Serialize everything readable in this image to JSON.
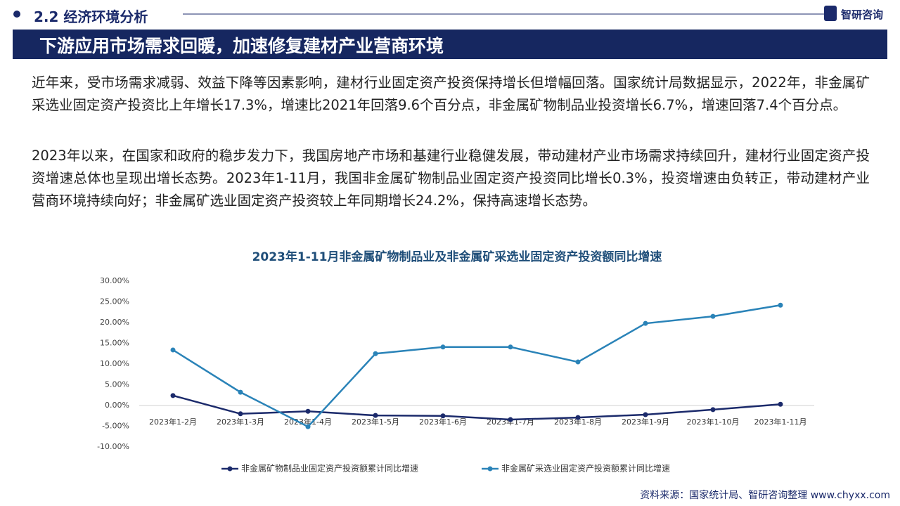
{
  "header": {
    "section": "2.2 经济环境分析",
    "brand": "智研咨询",
    "title": "下游应用市场需求回暖，加速修复建材产业营商环境"
  },
  "paragraphs": [
    "近年来，受市场需求减弱、效益下降等因素影响，建材行业固定资产投资保持增长但增幅回落。国家统计局数据显示，2022年，非金属矿采选业固定资产投资比上年增长17.3%，增速比2021年回落9.6个百分点，非金属矿物制品业投资增长6.7%，增速回落7.4个百分点。",
    "2023年以来，在国家和政府的稳步发力下，我国房地产市场和基建行业稳健发展，带动建材产业市场需求持续回升，建材行业固定资产投资增速总体也呈现出增长态势。2023年1-11月，我国非金属矿物制品业固定资产投资同比增长0.3%，投资增速由负转正，带动建材产业营商环境持续向好；非金属矿选业固定资产投资较上年同期增长24.2%，保持高速增长态势。"
  ],
  "source": "资料来源：国家统计局、智研咨询整理  www.chyxx.com",
  "chart_data": {
    "type": "line",
    "title": "2023年1-11月非金属矿物制品业及非金属矿采选业固定资产投资额同比增速",
    "categories": [
      "2023年1-2月",
      "2023年1-3月",
      "2023年1-4月",
      "2023年1-5月",
      "2023年1-6月",
      "2023年1-7月",
      "2023年1-8月",
      "2023年1-9月",
      "2023年1-10月",
      "2023年1-11月"
    ],
    "series": [
      {
        "name": "非金属矿物制品业固定资产投资额累计同比增速",
        "color": "#1b2a6b",
        "values": [
          2.4,
          -2.0,
          -1.4,
          -2.4,
          -2.5,
          -3.4,
          -2.9,
          -2.2,
          -1.0,
          0.3
        ]
      },
      {
        "name": "非金属矿采选业固定资产投资额累计同比增速",
        "color": "#2a83b8",
        "values": [
          13.4,
          3.2,
          -5.1,
          12.5,
          14.1,
          14.1,
          10.5,
          19.8,
          21.5,
          24.2
        ]
      }
    ],
    "ylim": [
      -10,
      30
    ],
    "yticks": [
      {
        "value": -10,
        "label": "-10.00%"
      },
      {
        "value": -5,
        "label": "-5.00%"
      },
      {
        "value": 0,
        "label": "0.00%"
      },
      {
        "value": 5,
        "label": "5.00%"
      },
      {
        "value": 10,
        "label": "10.00%"
      },
      {
        "value": 15,
        "label": "15.00%"
      },
      {
        "value": 20,
        "label": "20.00%"
      },
      {
        "value": 25,
        "label": "25.00%"
      },
      {
        "value": 30,
        "label": "30.00%"
      }
    ],
    "grid": false,
    "legend": "bottom"
  }
}
